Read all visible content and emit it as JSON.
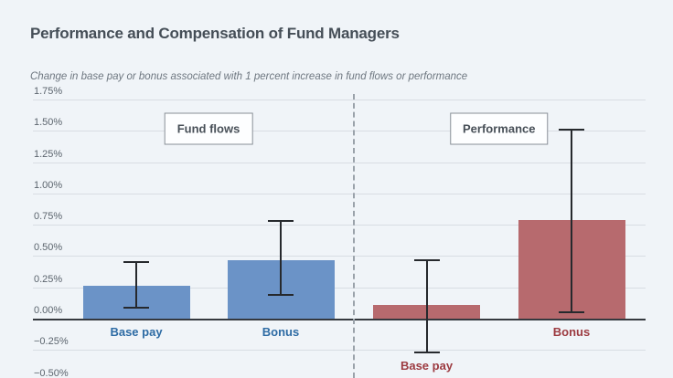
{
  "header": {
    "title": "Performance and Compensation of Fund Managers",
    "subtitle": "Change in base pay or bonus associated with 1 percent increase in fund flows or performance"
  },
  "chart_data": {
    "type": "bar",
    "title": "Performance and Compensation of Fund Managers",
    "subtitle": "Change in base pay or bonus associated with 1 percent increase in fund flows or performance",
    "unit": "percent",
    "ylim": [
      -0.5,
      1.75
    ],
    "grid": true,
    "legend_position": "none",
    "yticks": [
      {
        "v": 1.75,
        "label": "1.75%"
      },
      {
        "v": 1.5,
        "label": "1.50%"
      },
      {
        "v": 1.25,
        "label": "1.25%"
      },
      {
        "v": 1.0,
        "label": "1.00%"
      },
      {
        "v": 0.75,
        "label": "0.75%"
      },
      {
        "v": 0.5,
        "label": "0.50%"
      },
      {
        "v": 0.25,
        "label": "0.25%"
      },
      {
        "v": 0.0,
        "label": "0.00%"
      },
      {
        "v": -0.25,
        "label": "−0.25%"
      },
      {
        "v": -0.5,
        "label": "−0.50%"
      }
    ],
    "groups": [
      {
        "label": "Fund flows",
        "bar_color": "#6b93c7",
        "label_color": "#2d6ba4",
        "bars": [
          {
            "category": "Base pay",
            "value": 0.26,
            "ci_low": 0.09,
            "ci_high": 0.45
          },
          {
            "category": "Bonus",
            "value": 0.47,
            "ci_low": 0.19,
            "ci_high": 0.78
          }
        ]
      },
      {
        "label": "Performance",
        "bar_color": "#b76a6e",
        "label_color": "#9c3a40",
        "bars": [
          {
            "category": "Base pay",
            "value": 0.11,
            "ci_low": -0.27,
            "ci_high": 0.47
          },
          {
            "category": "Bonus",
            "value": 0.79,
            "ci_low": 0.05,
            "ci_high": 1.51
          }
        ]
      }
    ]
  },
  "colors": {
    "background": "#f0f4f8",
    "title_text": "#454e57",
    "subtitle_text": "#6e7780",
    "tick_text": "#5b646d",
    "gridline": "#d8dde3",
    "zero_line": "#35393f",
    "error_bar": "#26292d",
    "divider": "#9aa2aa",
    "box_border": "#878e96",
    "box_background": "#fdfeff",
    "box_text": "#474f57"
  }
}
